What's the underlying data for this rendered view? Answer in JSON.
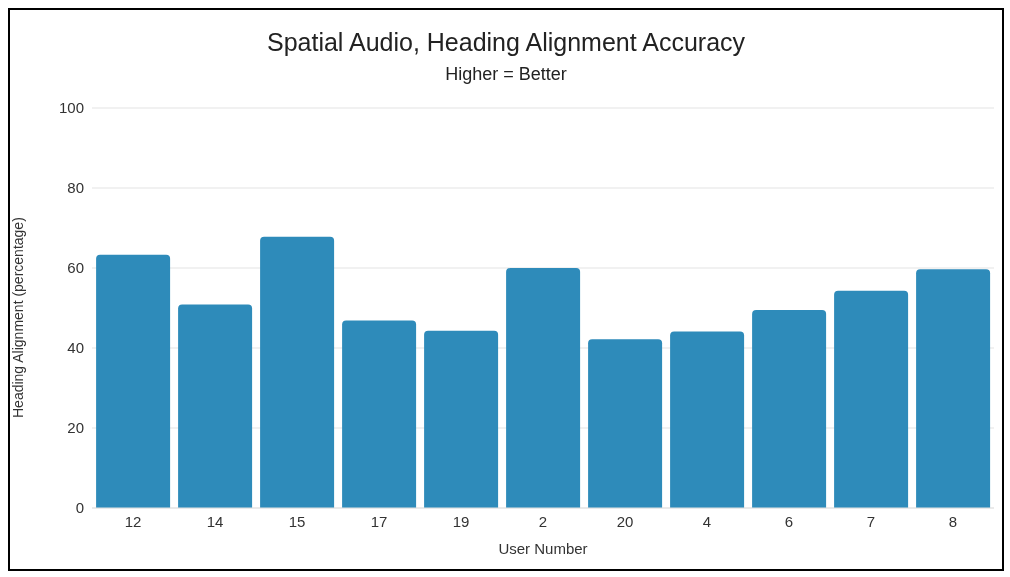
{
  "chart_data": {
    "type": "bar",
    "title": "Spatial Audio, Heading Alignment Accuracy",
    "subtitle": "Higher = Better",
    "xlabel": "User Number",
    "ylabel": "Heading Alignment (percentage)",
    "categories": [
      "12",
      "14",
      "15",
      "17",
      "19",
      "2",
      "20",
      "4",
      "6",
      "7",
      "8"
    ],
    "values": [
      63.3,
      50.9,
      67.8,
      46.9,
      44.3,
      60.0,
      42.2,
      44.1,
      49.5,
      54.3,
      59.7
    ],
    "color": "#2e8bba",
    "ylim": [
      0,
      100
    ],
    "yticks": [
      0,
      20,
      40,
      60,
      80,
      100
    ],
    "grid": "y"
  }
}
